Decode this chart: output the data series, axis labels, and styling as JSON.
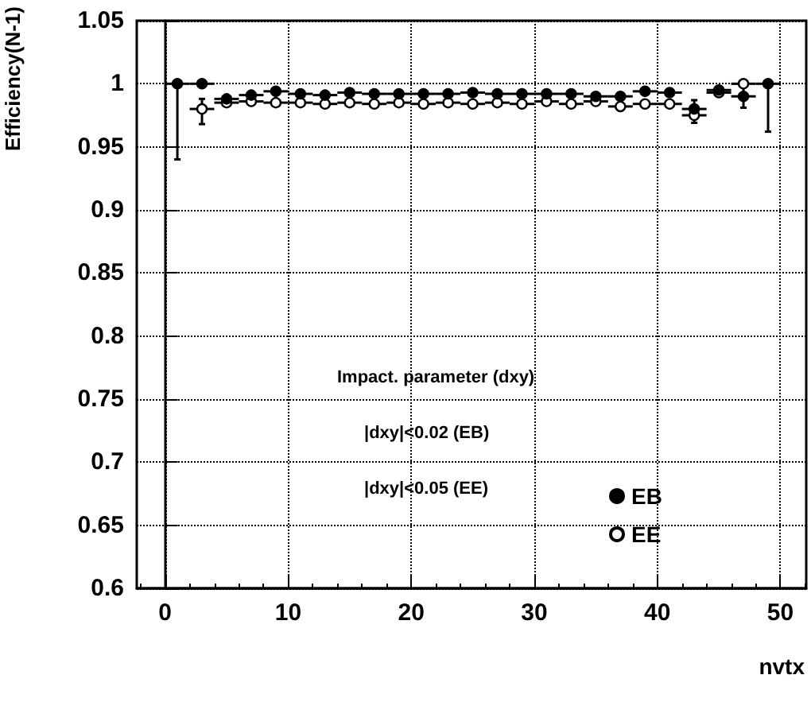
{
  "chart_data": {
    "type": "scatter",
    "xlabel": "nvtx",
    "ylabel": "Efficiency(N-1)",
    "annotations": [
      "Impact. parameter (dxy)",
      "|dxy|<0.02 (EB)",
      "|dxy|<0.05 (EE)"
    ],
    "x": [
      1,
      3,
      5,
      7,
      9,
      11,
      13,
      15,
      17,
      19,
      21,
      23,
      25,
      27,
      29,
      31,
      33,
      35,
      37,
      39,
      41,
      43,
      45,
      47,
      49
    ],
    "series": [
      {
        "name": "EB",
        "color": "#000000",
        "values": [
          1.0,
          1.0,
          0.988,
          0.991,
          0.994,
          0.992,
          0.991,
          0.993,
          0.992,
          0.992,
          0.992,
          0.992,
          0.993,
          0.992,
          0.992,
          0.992,
          0.992,
          0.99,
          0.99,
          0.994,
          0.993,
          0.98,
          0.995,
          0.99,
          1.0
        ],
        "errors": [
          [
            0.94,
            1.0
          ],
          null,
          null,
          null,
          null,
          null,
          null,
          null,
          null,
          null,
          null,
          null,
          null,
          null,
          null,
          null,
          null,
          null,
          null,
          null,
          null,
          [
            0.975,
            0.987
          ],
          null,
          [
            0.981,
            0.998
          ],
          [
            0.962,
            1.0
          ]
        ],
        "xerrors": [
          1,
          1,
          1,
          1,
          1,
          1,
          1,
          1,
          1,
          1,
          1,
          1,
          1,
          1,
          1,
          1,
          1,
          1,
          1,
          1,
          1,
          1,
          1,
          1,
          1
        ]
      },
      {
        "name": "EE",
        "color": "#ffffff",
        "values": [
          null,
          0.98,
          0.985,
          0.986,
          0.985,
          0.985,
          0.984,
          0.985,
          0.984,
          0.985,
          0.984,
          0.985,
          0.984,
          0.985,
          0.984,
          0.986,
          0.984,
          0.986,
          0.982,
          0.984,
          0.984,
          0.975,
          0.993,
          1.0,
          null
        ],
        "errors": [
          null,
          [
            0.968,
            0.988
          ],
          null,
          null,
          null,
          null,
          null,
          null,
          null,
          null,
          null,
          null,
          null,
          null,
          null,
          null,
          null,
          null,
          null,
          null,
          null,
          [
            0.969,
            0.981
          ],
          null,
          null,
          null
        ],
        "xerrors": [
          null,
          1,
          1,
          1,
          1,
          1,
          1,
          1,
          1,
          1,
          1,
          1,
          1,
          1,
          1,
          1,
          1,
          1,
          1,
          1,
          1,
          1,
          1,
          1,
          null
        ]
      }
    ],
    "xlim": [
      -2.3,
      52.1
    ],
    "ylim": [
      0.6,
      1.05
    ],
    "xticks": [
      0,
      10,
      20,
      30,
      40,
      50
    ],
    "yticks": [
      {
        "value": 0.6,
        "label": "0.6"
      },
      {
        "value": 0.65,
        "label": "0.65"
      },
      {
        "value": 0.7,
        "label": "0.7"
      },
      {
        "value": 0.75,
        "label": "0.75"
      },
      {
        "value": 0.8,
        "label": "0.8"
      },
      {
        "value": 0.85,
        "label": "0.85"
      },
      {
        "value": 0.9,
        "label": "0.9"
      },
      {
        "value": 0.95,
        "label": "0.95"
      },
      {
        "value": 1,
        "label": "1"
      },
      {
        "value": 1.05,
        "label": "1.05"
      }
    ],
    "grid": true,
    "legend": "bottom right",
    "marker": "circle"
  }
}
